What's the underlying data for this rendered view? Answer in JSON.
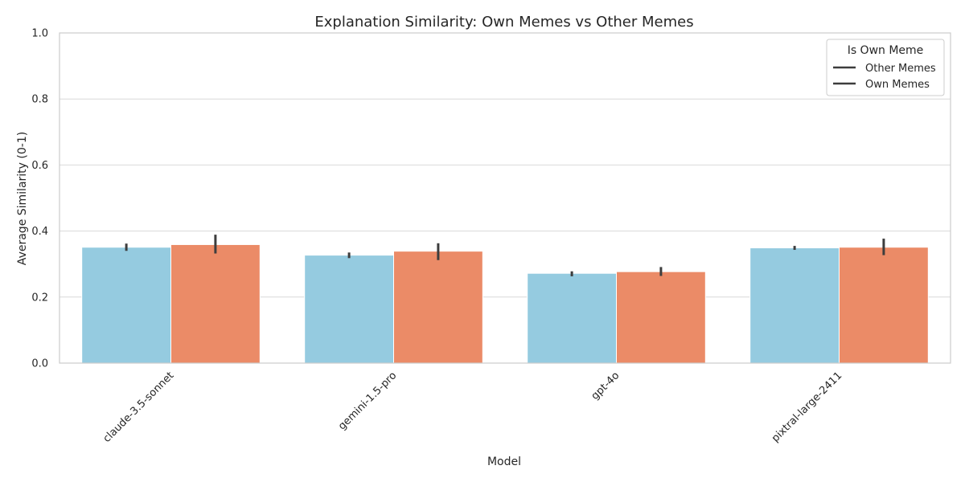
{
  "chart_data": {
    "type": "bar",
    "title": "Explanation Similarity: Own Memes vs Other Memes",
    "xlabel": "Model",
    "ylabel": "Average Similarity (0-1)",
    "ylim": [
      0,
      1.0
    ],
    "yticks": [
      "0.0",
      "0.2",
      "0.4",
      "0.6",
      "0.8",
      "1.0"
    ],
    "grid": "horizontal",
    "legend": {
      "title": "Is Own Meme",
      "placement": "top-right",
      "entries": [
        "Other Memes",
        "Own Memes"
      ]
    },
    "categories": [
      "claude-3.5-sonnet",
      "gemini-1.5-pro",
      "gpt-4o",
      "pixtral-large-2411"
    ],
    "series": [
      {
        "name": "Other Memes",
        "color": "#95cbe0",
        "values": [
          0.351,
          0.327,
          0.272,
          0.349
        ],
        "ci": [
          [
            0.34,
            0.362
          ],
          [
            0.318,
            0.335
          ],
          [
            0.263,
            0.278
          ],
          [
            0.343,
            0.355
          ]
        ]
      },
      {
        "name": "Own Memes",
        "color": "#eb8b67",
        "values": [
          0.359,
          0.339,
          0.277,
          0.351
        ],
        "ci": [
          [
            0.332,
            0.389
          ],
          [
            0.312,
            0.363
          ],
          [
            0.264,
            0.291
          ],
          [
            0.327,
            0.377
          ]
        ]
      }
    ]
  }
}
